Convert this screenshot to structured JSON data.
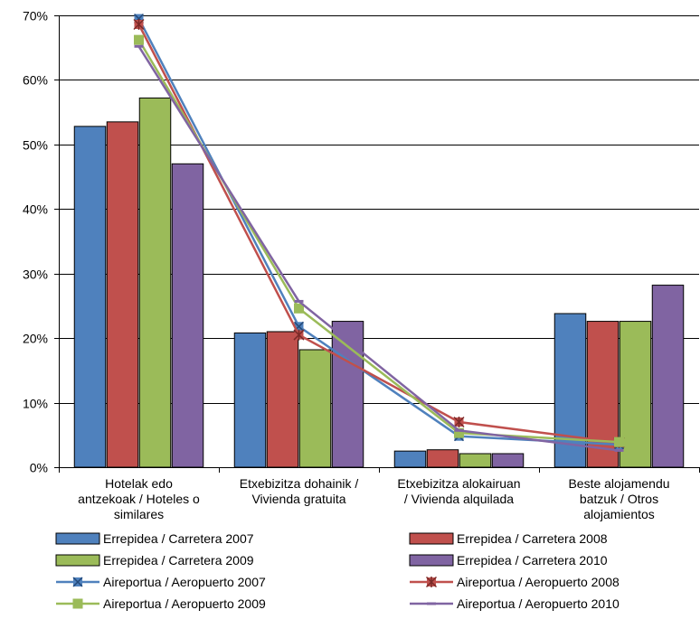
{
  "chart_data": {
    "type": "bar",
    "ylim": [
      0,
      70
    ],
    "ytick_step": 10,
    "ytick_labels": [
      "0%",
      "10%",
      "20%",
      "30%",
      "40%",
      "50%",
      "60%",
      "70%"
    ],
    "grid": true,
    "legend_position": "bottom",
    "categories": [
      [
        "Hotelak edo",
        "antzekoak / Hoteles o",
        "similares"
      ],
      [
        "Etxebizitza dohainik /",
        "Vivienda gratuita"
      ],
      [
        "Etxebizitza alokairuan",
        "/ Vivienda alquilada"
      ],
      [
        "Beste alojamendu",
        "batzuk / Otros",
        "alojamientos"
      ]
    ],
    "bar_series": [
      {
        "name": "Errepidea / Carretera 2007",
        "color": "#4F81BD",
        "values": [
          52.8,
          20.8,
          2.5,
          23.8
        ]
      },
      {
        "name": "Errepidea / Carretera 2008",
        "color": "#C0504D",
        "values": [
          53.5,
          21.0,
          2.7,
          22.6
        ]
      },
      {
        "name": "Errepidea / Carretera 2009",
        "color": "#9BBB59",
        "values": [
          57.2,
          18.2,
          2.1,
          22.6
        ]
      },
      {
        "name": "Errepidea / Carretera 2010",
        "color": "#8064A2",
        "values": [
          47.0,
          22.6,
          2.1,
          28.2
        ]
      }
    ],
    "line_series": [
      {
        "name": "Aireportua / Aeropuerto 2007",
        "color": "#4F81BD",
        "marker": "x",
        "values": [
          69.5,
          21.8,
          4.8,
          3.5
        ]
      },
      {
        "name": "Aireportua / Aeropuerto 2008",
        "color": "#C0504D",
        "marker": "star",
        "values": [
          68.6,
          20.5,
          7.0,
          3.8
        ]
      },
      {
        "name": "Aireportua / Aeropuerto 2009",
        "color": "#9BBB59",
        "marker": "square",
        "values": [
          66.2,
          24.6,
          5.3,
          3.9
        ]
      },
      {
        "name": "Aireportua / Aeropuerto 2010",
        "color": "#8064A2",
        "marker": "dash",
        "values": [
          65.2,
          25.7,
          5.7,
          2.6
        ]
      }
    ]
  }
}
